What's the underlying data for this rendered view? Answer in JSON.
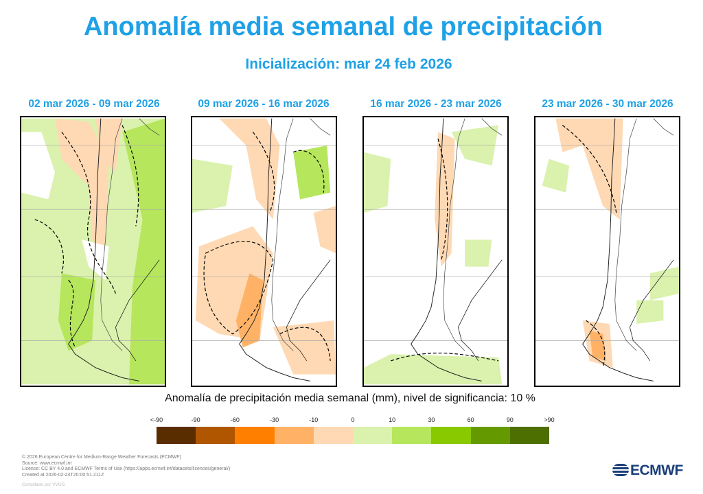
{
  "title": "Anomalía media semanal de precipitación",
  "subtitle": "Inicialización: mar 24 feb 2026",
  "chart_data": {
    "type": "heatmap",
    "title": "Anomalía media semanal de precipitación",
    "subtitle": "Inicialización: mar 24 feb 2026",
    "panels": [
      {
        "title": "02 mar 2026 - 09 mar 2026",
        "summary": "mostly positive anomalies (10 to 60) over central Andes east and south; negative (-10 to -30) over northern Chile/Andes"
      },
      {
        "title": "09 mar 2026 - 16 mar 2026",
        "summary": "widespread negative anomalies (-10 to -60) over Pacific coast and southern Chile; small positive patches in Argentina"
      },
      {
        "title": "16 mar 2026 - 23 mar 2026",
        "summary": "near-zero; weak negative along Andes, weak positive patches"
      },
      {
        "title": "23 mar 2026 - 30 mar 2026",
        "summary": "weak negative over northern Andes and far south; scattered weak positive"
      }
    ],
    "colorbar": {
      "title": "Anomalía de precipitación media semanal (mm), nivel de significancia: 10 %",
      "tick_labels": [
        "<-90",
        "-90",
        "-60",
        "-30",
        "-10",
        "0",
        "10",
        "30",
        "60",
        "90",
        ">90"
      ],
      "colors": [
        "#5a2d00",
        "#b05500",
        "#ff8000",
        "#ffb266",
        "#ffd9b3",
        "#daf2ad",
        "#b5e65c",
        "#88c900",
        "#649a00",
        "#4d6e00"
      ]
    }
  },
  "footer": {
    "lines": [
      "© 2026 European Centre for Medium-Range Weather Forecasts (ECMWF)",
      "Source: www.ecmwf.int",
      "Licence: CC BY 4.0 and ECMWF Terms of Use (https://apps.ecmwf.int/datasets/licences/general/)",
      "Created at 2026-02-24T20:00:51.211Z"
    ],
    "compiled": "Compilado por VVUG"
  },
  "logo": "ECMWF"
}
